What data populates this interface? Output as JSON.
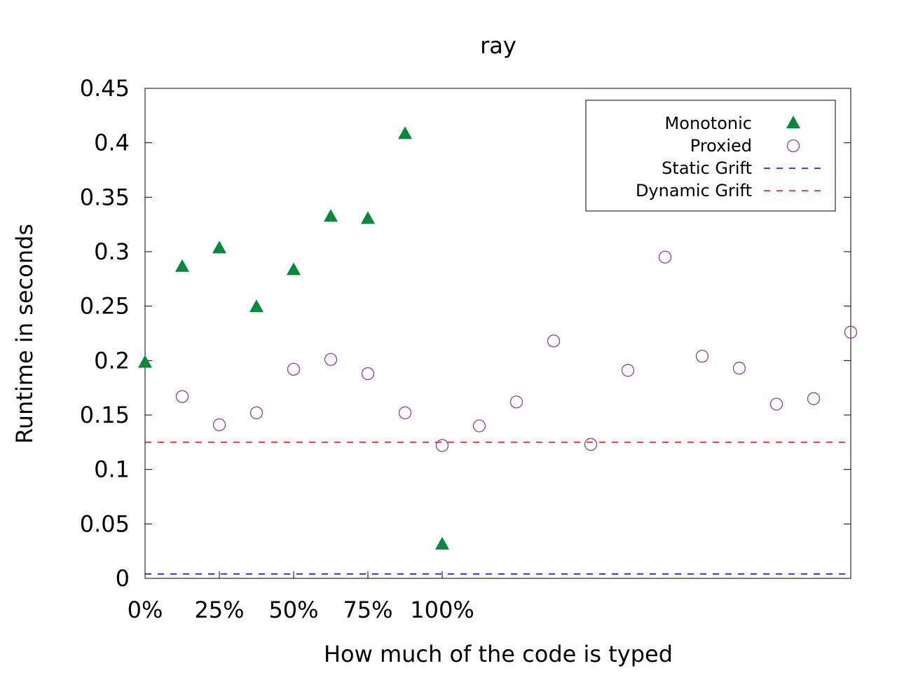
{
  "chart_data": {
    "type": "scatter",
    "title": "ray",
    "xlabel": "How much of the code is typed",
    "ylabel": "Runtime in seconds",
    "xlim": [
      0,
      19
    ],
    "ylim": [
      0,
      0.45
    ],
    "yticks": [
      0,
      0.05,
      0.1,
      0.15,
      0.2,
      0.25,
      0.3,
      0.35,
      0.4,
      0.45
    ],
    "ytick_labels": [
      "0",
      "0.05",
      "0.1",
      "0.15",
      "0.2",
      "0.25",
      "0.3",
      "0.35",
      "0.4",
      "0.45"
    ],
    "xticks": [
      0,
      2,
      4,
      6,
      8
    ],
    "xtick_labels": [
      "0%",
      "25%",
      "50%",
      "75%",
      "100%"
    ],
    "grid": false,
    "legend_position": "top-right",
    "series": [
      {
        "name": "Monotonic",
        "marker": "filled-triangle",
        "color": "#008a3a",
        "x": [
          0,
          1,
          2,
          3,
          4,
          5,
          6,
          7,
          8
        ],
        "y": [
          0.198,
          0.286,
          0.303,
          0.249,
          0.283,
          0.332,
          0.33,
          0.408,
          0.031
        ]
      },
      {
        "name": "Proxied",
        "marker": "open-circle",
        "color": "#8b3da8",
        "x": [
          1,
          2,
          3,
          4,
          5,
          6,
          7,
          8,
          9,
          10,
          11,
          12,
          13,
          14,
          15,
          16,
          17,
          18,
          19
        ],
        "y": [
          0.167,
          0.141,
          0.152,
          0.192,
          0.201,
          0.188,
          0.152,
          0.122,
          0.14,
          0.162,
          0.218,
          0.123,
          0.191,
          0.295,
          0.204,
          0.193,
          0.16,
          0.165,
          0.226
        ]
      },
      {
        "name": "Static Grift",
        "marker": "dashed-line",
        "color": "#0000ff",
        "value": 0.004
      },
      {
        "name": "Dynamic Grift",
        "marker": "dashed-line",
        "color": "#ff0000",
        "value": 0.125
      }
    ]
  }
}
